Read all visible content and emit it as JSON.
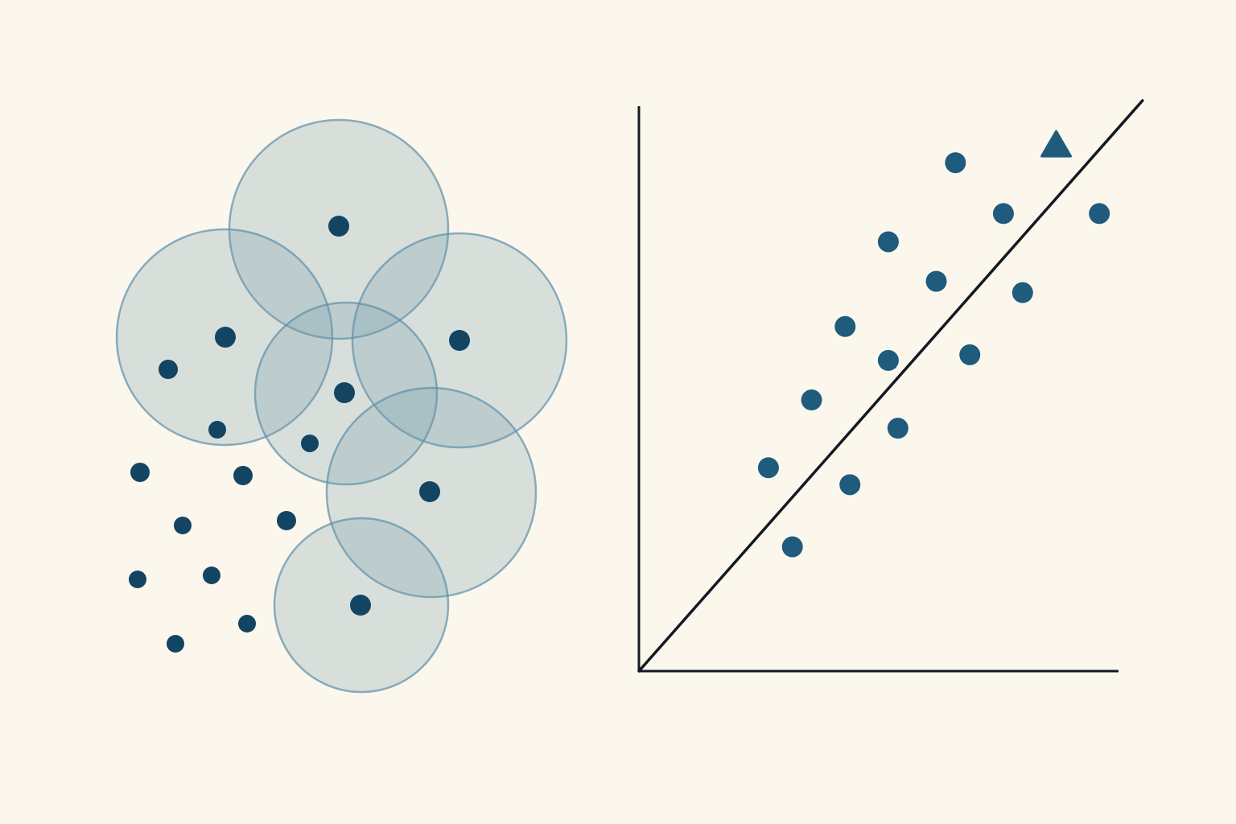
{
  "colors": {
    "background": "#fcf7ed",
    "circle_fill": "#6f99ab",
    "circle_stroke": "#5e8fa9",
    "point_dark": "#134563",
    "point_mid": "#1f5b7d",
    "axis": "#111a22"
  },
  "icons": {
    "outlier_marker": "triangle-icon"
  },
  "cluster_diagram": {
    "description_none": "",
    "circle_count": 6,
    "loose_point_count": 11
  },
  "chart_data": {
    "type": "scatter",
    "title": "",
    "xlabel": "",
    "ylabel": "",
    "xlim": [
      0,
      100
    ],
    "ylim": [
      0,
      100
    ],
    "grid": false,
    "legend": "none",
    "points": [
      {
        "x": 27,
        "y": 36
      },
      {
        "x": 32,
        "y": 22
      },
      {
        "x": 36,
        "y": 48
      },
      {
        "x": 44,
        "y": 33
      },
      {
        "x": 43,
        "y": 61
      },
      {
        "x": 52,
        "y": 55
      },
      {
        "x": 54,
        "y": 43
      },
      {
        "x": 52,
        "y": 76
      },
      {
        "x": 62,
        "y": 69
      },
      {
        "x": 69,
        "y": 56
      },
      {
        "x": 66,
        "y": 90
      },
      {
        "x": 76,
        "y": 81
      },
      {
        "x": 80,
        "y": 67
      },
      {
        "x": 96,
        "y": 81
      }
    ],
    "outlier": {
      "x": 87,
      "y": 93
    },
    "trend_line": {
      "x": [
        0,
        105
      ],
      "y": [
        0,
        101
      ]
    }
  }
}
